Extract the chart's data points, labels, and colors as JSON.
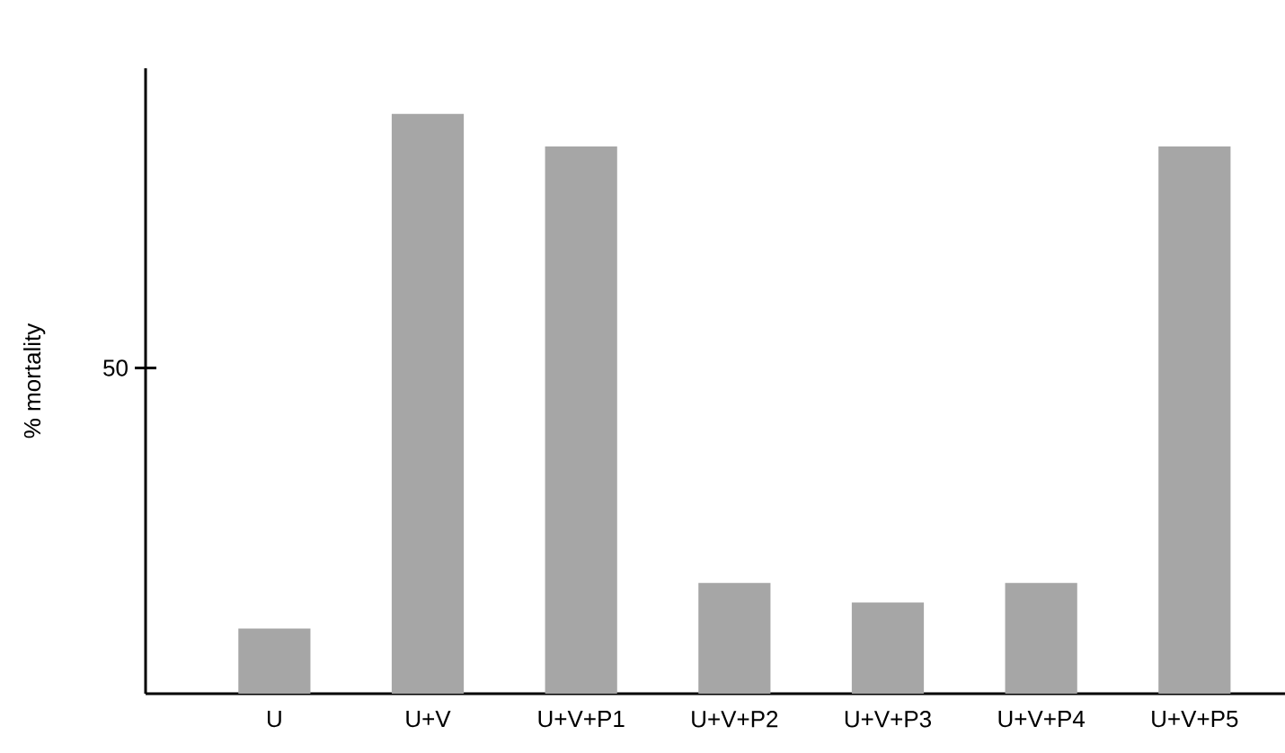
{
  "chart_data": {
    "type": "bar",
    "ylabel": "% mortality",
    "categories": [
      "U",
      "U+V",
      "U+V+P1",
      "U+V+P2",
      "U+V+P3",
      "U+V+P4",
      "U+V+P5"
    ],
    "values": [
      10,
      89,
      84,
      17,
      14,
      17,
      84
    ],
    "color": "#a6a6a6",
    "ylim": [
      0,
      96
    ],
    "yticks": [
      50
    ],
    "grid": false
  }
}
